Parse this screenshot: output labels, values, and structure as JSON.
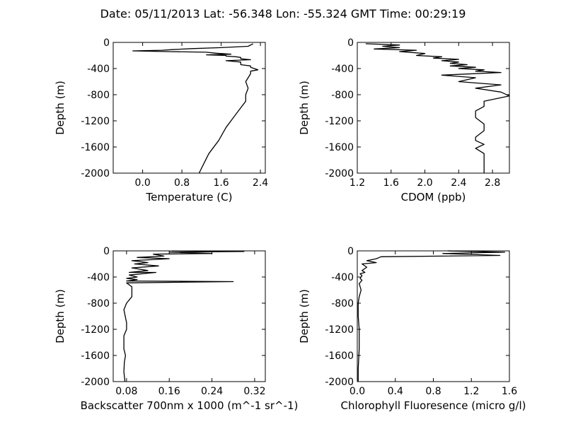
{
  "title": "Date: 05/11/2013  Lat:  -56.348 Lon:  -55.324  GMT Time: 00:29:19",
  "chart_data": [
    {
      "type": "line",
      "xlabel": "Temperature (C)",
      "ylabel": "Depth (m)",
      "xlim": [
        -0.6,
        2.5
      ],
      "ylim": [
        -2000,
        0
      ],
      "xticks": [
        "0.0",
        "0.8",
        "1.6",
        "2.4"
      ],
      "xtick_values": [
        0.0,
        0.8,
        1.6,
        2.4
      ],
      "yticks": [
        "0",
        "-400",
        "-800",
        "-1200",
        "-1600",
        "-2000"
      ],
      "ytick_values": [
        0,
        -400,
        -800,
        -1200,
        -1600,
        -2000
      ],
      "series": [
        {
          "x": [
            2.25,
            2.15,
            1.6,
            1.0,
            0.6,
            0.4,
            -0.2,
            0.5,
            1.3,
            1.5,
            1.8,
            1.3,
            1.7,
            1.7,
            1.9,
            2.0,
            2.0,
            2.2,
            1.7,
            2.0,
            2.0,
            2.2,
            2.2,
            2.35,
            2.2,
            2.2,
            2.1,
            2.15,
            2.1,
            2.1,
            2.0,
            1.85,
            1.7,
            1.55,
            1.35,
            1.25,
            1.15
          ],
          "y": [
            -20,
            -60,
            -80,
            -95,
            -110,
            -120,
            -130,
            -140,
            -150,
            -165,
            -180,
            -190,
            -200,
            -210,
            -220,
            -230,
            -250,
            -265,
            -280,
            -300,
            -340,
            -360,
            -380,
            -420,
            -440,
            -480,
            -600,
            -700,
            -800,
            -900,
            -1000,
            -1150,
            -1300,
            -1500,
            -1700,
            -1850,
            -2000
          ]
        }
      ]
    },
    {
      "type": "line",
      "xlabel": "CDOM (ppb)",
      "ylabel": "Depth (m)",
      "xlim": [
        1.2,
        3.0
      ],
      "ylim": [
        -2000,
        0
      ],
      "xticks": [
        "1.2",
        "1.6",
        "2.0",
        "2.4",
        "2.8"
      ],
      "xtick_values": [
        1.2,
        1.6,
        2.0,
        2.4,
        2.8
      ],
      "yticks": [
        "0",
        "-400",
        "-800",
        "-1200",
        "-1600",
        "-2000"
      ],
      "ytick_values": [
        0,
        -400,
        -800,
        -1200,
        -1600,
        -2000
      ],
      "series": [
        {
          "x": [
            1.3,
            1.7,
            1.5,
            1.7,
            1.4,
            1.9,
            1.7,
            2.0,
            1.9,
            2.2,
            2.1,
            2.4,
            2.2,
            2.4,
            2.3,
            2.5,
            2.3,
            2.6,
            2.4,
            2.7,
            2.6,
            2.9,
            2.2,
            2.6,
            2.4,
            2.9,
            2.6,
            2.9,
            3.0,
            2.7,
            2.7,
            2.6,
            2.6,
            2.7,
            2.7,
            2.6,
            2.6,
            2.7,
            2.6,
            2.7,
            2.7
          ],
          "y": [
            -20,
            -40,
            -60,
            -80,
            -100,
            -120,
            -140,
            -170,
            -200,
            -220,
            -240,
            -260,
            -280,
            -300,
            -320,
            -340,
            -360,
            -380,
            -400,
            -420,
            -440,
            -460,
            -500,
            -540,
            -600,
            -650,
            -700,
            -760,
            -820,
            -900,
            -980,
            -1050,
            -1150,
            -1250,
            -1350,
            -1450,
            -1500,
            -1560,
            -1620,
            -1700,
            -2000
          ]
        }
      ]
    },
    {
      "type": "line",
      "xlabel": "Backscatter 700nm x 1000 (m^-1 sr^-1)",
      "ylabel": "Depth (m)",
      "xlim": [
        0.055,
        0.34
      ],
      "ylim": [
        -2000,
        0
      ],
      "xticks": [
        "0.08",
        "0.16",
        "0.24",
        "0.32"
      ],
      "xtick_values": [
        0.08,
        0.16,
        0.24,
        0.32
      ],
      "yticks": [
        "0",
        "-400",
        "-800",
        "-1200",
        "-1600",
        "-2000"
      ],
      "ytick_values": [
        0,
        -400,
        -800,
        -1200,
        -1600,
        -2000
      ],
      "series": [
        {
          "x": [
            0.165,
            0.3,
            0.16,
            0.24,
            0.13,
            0.15,
            0.1,
            0.16,
            0.09,
            0.12,
            0.095,
            0.14,
            0.09,
            0.12,
            0.085,
            0.135,
            0.085,
            0.1,
            0.08,
            0.1,
            0.08,
            0.28,
            0.08,
            0.09,
            0.09,
            0.08,
            0.075,
            0.08,
            0.08,
            0.075,
            0.075,
            0.078,
            0.076,
            0.075,
            0.077
          ],
          "y": [
            0,
            -10,
            -20,
            -40,
            -50,
            -80,
            -100,
            -120,
            -150,
            -180,
            -200,
            -230,
            -260,
            -300,
            -330,
            -330,
            -370,
            -400,
            -420,
            -440,
            -460,
            -470,
            -490,
            -550,
            -700,
            -800,
            -900,
            -1100,
            -1200,
            -1300,
            -1500,
            -1600,
            -1700,
            -1850,
            -2000
          ]
        }
      ]
    },
    {
      "type": "line",
      "xlabel": "Chlorophyll Fluoresence (micro g/l)",
      "ylabel": "Depth (m)",
      "xlim": [
        0.0,
        1.6
      ],
      "ylim": [
        -2000,
        0
      ],
      "xticks": [
        "0.0",
        "0.4",
        "0.8",
        "1.2",
        "1.6"
      ],
      "xtick_values": [
        0.0,
        0.4,
        0.8,
        1.2,
        1.6
      ],
      "yticks": [
        "0",
        "-400",
        "-800",
        "-1200",
        "-1600",
        "-2000"
      ],
      "ytick_values": [
        0,
        -400,
        -800,
        -1200,
        -1600,
        -2000
      ],
      "series": [
        {
          "x": [
            0.95,
            1.55,
            0.9,
            1.5,
            0.25,
            0.2,
            0.1,
            0.2,
            0.05,
            0.1,
            0.05,
            0.08,
            0.03,
            0.05,
            0.03,
            0.05,
            0.02,
            0.04,
            0.02,
            0.01,
            0.01,
            0.02,
            0.02,
            0.01,
            0.01
          ],
          "y": [
            0,
            -20,
            -40,
            -70,
            -90,
            -120,
            -150,
            -180,
            -200,
            -250,
            -300,
            -330,
            -350,
            -380,
            -420,
            -450,
            -500,
            -600,
            -700,
            -800,
            -1000,
            -1200,
            -1500,
            -1800,
            -2000
          ]
        }
      ]
    }
  ]
}
